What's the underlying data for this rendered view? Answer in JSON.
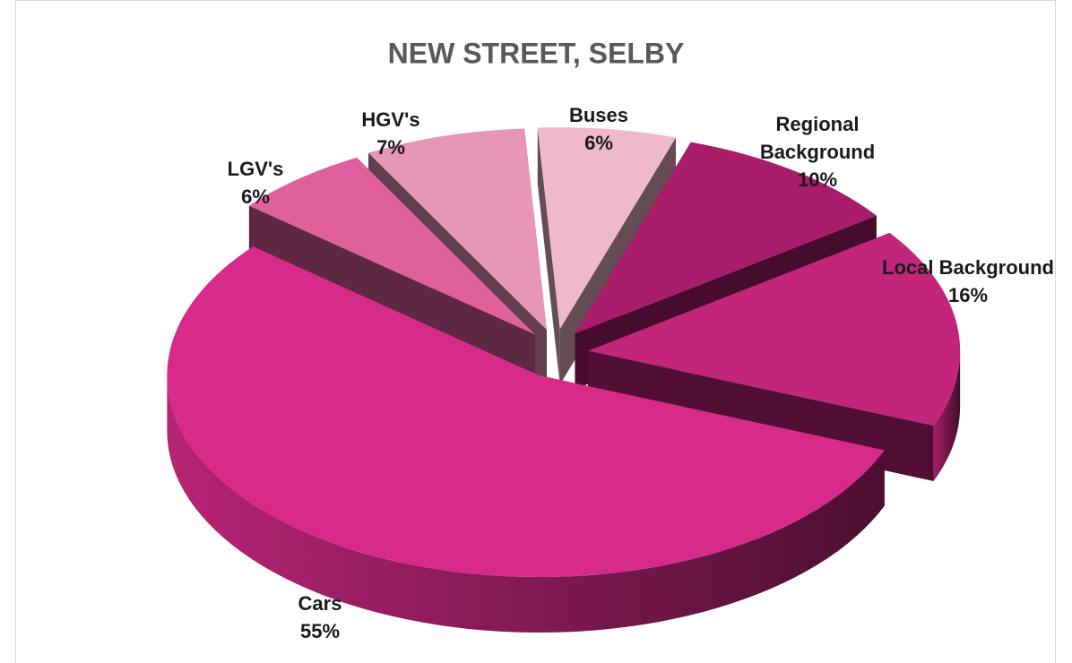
{
  "chart_data": {
    "type": "pie",
    "title": "NEW STREET, SELBY",
    "categories": [
      "Buses",
      "Regional Background",
      "Local Background",
      "Cars",
      "LGV's",
      "HGV's"
    ],
    "values": [
      6,
      10,
      16,
      55,
      6,
      7
    ],
    "value_labels": [
      "6%",
      "10%",
      "16%",
      "55%",
      "6%",
      "7%"
    ],
    "colors": [
      "#f0b8cc",
      "#a81c6a",
      "#c2257a",
      "#d82a8a",
      "#e0609e",
      "#e896b8"
    ]
  }
}
